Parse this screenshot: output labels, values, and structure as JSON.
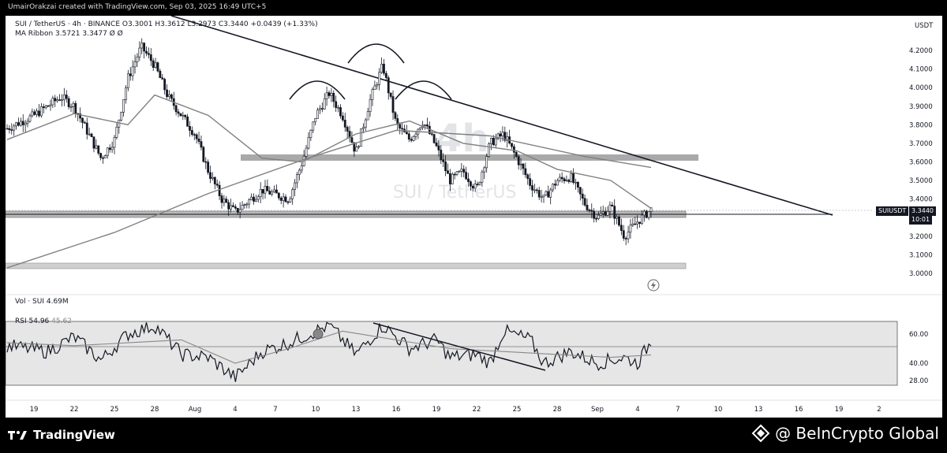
{
  "header": {
    "creator_line": "UmairOrakzai created with TradingView.com, Sep 03, 2025 16:49 UTC+5"
  },
  "legend": {
    "symbol_line": "SUI / TetherUS · 4h · BINANCE",
    "open": "O3.3001",
    "high": "H3.3612",
    "low": "L3.2973",
    "close": "C3.3440",
    "change": "+0.0439 (+1.33%)",
    "ma_ribbon": "MA Ribbon  3.5721  3.3477  Ø  Ø",
    "volume": "Vol · SUI  4.69M",
    "rsi_label": "RSI",
    "rsi_value": "54.96",
    "rsi_ma": "45.62"
  },
  "watermark": {
    "timeframe": "4h",
    "pair": "SUI / TetherUS"
  },
  "price_axis": {
    "currency": "USDT",
    "ticks": [
      "4.2000",
      "4.1000",
      "4.0000",
      "3.9000",
      "3.8000",
      "3.7000",
      "3.6000",
      "3.5000",
      "3.4000",
      "3.2000",
      "3.1000",
      "3.0000"
    ],
    "current_symbol": "SUIUSDT",
    "current_price": "3.3440",
    "countdown": "10:01"
  },
  "rsi_axis": {
    "ticks": [
      "60.00",
      "40.00",
      "28.00"
    ]
  },
  "time_axis": {
    "ticks": [
      "19",
      "22",
      "25",
      "28",
      "Aug",
      "4",
      "7",
      "10",
      "13",
      "16",
      "19",
      "22",
      "25",
      "28",
      "Sep",
      "4",
      "7",
      "10",
      "13",
      "16",
      "19",
      "2"
    ]
  },
  "footer": {
    "brand_left": "TradingView",
    "brand_right": "@ BeInCrypto Global"
  },
  "colors": {
    "up": "#089981",
    "down": "#f23645",
    "candle": "#131722",
    "zone": "#9e9e9e",
    "ma": "#808080"
  },
  "chart_data": {
    "type": "candlestick",
    "symbol": "SUIUSDT",
    "timeframe": "4h",
    "price_range": [
      2.95,
      4.3
    ],
    "rsi_range": [
      25,
      70
    ],
    "support_zones": [
      3.62,
      3.32,
      3.04
    ],
    "current_price": 3.344,
    "close_path": [
      {
        "x": "Jul 17",
        "y": 3.78
      },
      {
        "x": "Jul 19",
        "y": 3.85
      },
      {
        "x": "Jul 21",
        "y": 3.95
      },
      {
        "x": "Jul 22",
        "y": 3.9
      },
      {
        "x": "Jul 24",
        "y": 3.62
      },
      {
        "x": "Jul 25",
        "y": 3.72
      },
      {
        "x": "Jul 26",
        "y": 4.05
      },
      {
        "x": "Jul 27",
        "y": 4.22
      },
      {
        "x": "Jul 28",
        "y": 4.12
      },
      {
        "x": "Jul 29",
        "y": 3.95
      },
      {
        "x": "Jul 31",
        "y": 3.75
      },
      {
        "x": "Aug 1",
        "y": 3.55
      },
      {
        "x": "Aug 2",
        "y": 3.4
      },
      {
        "x": "Aug 3",
        "y": 3.33
      },
      {
        "x": "Aug 5",
        "y": 3.45
      },
      {
        "x": "Aug 7",
        "y": 3.4
      },
      {
        "x": "Aug 8",
        "y": 3.6
      },
      {
        "x": "Aug 9",
        "y": 3.85
      },
      {
        "x": "Aug 10",
        "y": 3.97
      },
      {
        "x": "Aug 11",
        "y": 3.85
      },
      {
        "x": "Aug 12",
        "y": 3.65
      },
      {
        "x": "Aug 13",
        "y": 3.92
      },
      {
        "x": "Aug 14",
        "y": 4.12
      },
      {
        "x": "Aug 15",
        "y": 3.8
      },
      {
        "x": "Aug 16",
        "y": 3.72
      },
      {
        "x": "Aug 17",
        "y": 3.82
      },
      {
        "x": "Aug 18",
        "y": 3.68
      },
      {
        "x": "Aug 19",
        "y": 3.5
      },
      {
        "x": "Aug 20",
        "y": 3.55
      },
      {
        "x": "Aug 21",
        "y": 3.45
      },
      {
        "x": "Aug 22",
        "y": 3.7
      },
      {
        "x": "Aug 23",
        "y": 3.75
      },
      {
        "x": "Aug 24",
        "y": 3.62
      },
      {
        "x": "Aug 25",
        "y": 3.48
      },
      {
        "x": "Aug 26",
        "y": 3.4
      },
      {
        "x": "Aug 27",
        "y": 3.5
      },
      {
        "x": "Aug 28",
        "y": 3.52
      },
      {
        "x": "Aug 29",
        "y": 3.38
      },
      {
        "x": "Aug 30",
        "y": 3.3
      },
      {
        "x": "Aug 31",
        "y": 3.36
      },
      {
        "x": "Sep 1",
        "y": 3.2
      },
      {
        "x": "Sep 2",
        "y": 3.28
      },
      {
        "x": "Sep 3",
        "y": 3.344
      }
    ],
    "ma_slow": [
      {
        "x": "Jul 17",
        "y": 3.03
      },
      {
        "x": "Jul 25",
        "y": 3.22
      },
      {
        "x": "Aug 1",
        "y": 3.43
      },
      {
        "x": "Aug 8",
        "y": 3.61
      },
      {
        "x": "Aug 15",
        "y": 3.77
      },
      {
        "x": "Aug 22",
        "y": 3.74
      },
      {
        "x": "Aug 29",
        "y": 3.63
      },
      {
        "x": "Sep 3",
        "y": 3.57
      }
    ],
    "ma_fast": [
      {
        "x": "Jul 17",
        "y": 3.72
      },
      {
        "x": "Jul 22",
        "y": 3.86
      },
      {
        "x": "Jul 26",
        "y": 3.8
      },
      {
        "x": "Jul 28",
        "y": 3.96
      },
      {
        "x": "Aug 1",
        "y": 3.85
      },
      {
        "x": "Aug 5",
        "y": 3.62
      },
      {
        "x": "Aug 8",
        "y": 3.6
      },
      {
        "x": "Aug 12",
        "y": 3.75
      },
      {
        "x": "Aug 16",
        "y": 3.82
      },
      {
        "x": "Aug 20",
        "y": 3.7
      },
      {
        "x": "Aug 24",
        "y": 3.66
      },
      {
        "x": "Aug 27",
        "y": 3.56
      },
      {
        "x": "Aug 31",
        "y": 3.5
      },
      {
        "x": "Sep 3",
        "y": 3.35
      }
    ],
    "rsi": [
      {
        "x": "Jul 17",
        "y": 52
      },
      {
        "x": "Jul 20",
        "y": 48
      },
      {
        "x": "Jul 22",
        "y": 58
      },
      {
        "x": "Jul 24",
        "y": 42
      },
      {
        "x": "Jul 26",
        "y": 60
      },
      {
        "x": "Jul 28",
        "y": 66
      },
      {
        "x": "Jul 30",
        "y": 46
      },
      {
        "x": "Aug 1",
        "y": 44
      },
      {
        "x": "Aug 3",
        "y": 30
      },
      {
        "x": "Aug 5",
        "y": 48
      },
      {
        "x": "Aug 7",
        "y": 54
      },
      {
        "x": "Aug 9",
        "y": 62
      },
      {
        "x": "Aug 10",
        "y": 66
      },
      {
        "x": "Aug 12",
        "y": 46
      },
      {
        "x": "Aug 14",
        "y": 66
      },
      {
        "x": "Aug 16",
        "y": 50
      },
      {
        "x": "Aug 18",
        "y": 56
      },
      {
        "x": "Aug 19",
        "y": 44
      },
      {
        "x": "Aug 21",
        "y": 46
      },
      {
        "x": "Aug 22",
        "y": 40
      },
      {
        "x": "Aug 23",
        "y": 62
      },
      {
        "x": "Aug 25",
        "y": 56
      },
      {
        "x": "Aug 26",
        "y": 40
      },
      {
        "x": "Aug 28",
        "y": 48
      },
      {
        "x": "Aug 30",
        "y": 40
      },
      {
        "x": "Sep 1",
        "y": 44
      },
      {
        "x": "Sep 2",
        "y": 40
      },
      {
        "x": "Sep 3",
        "y": 55
      }
    ],
    "rsi_ma": [
      {
        "x": "Jul 17",
        "y": 54
      },
      {
        "x": "Jul 22",
        "y": 52
      },
      {
        "x": "Jul 26",
        "y": 54
      },
      {
        "x": "Jul 30",
        "y": 56
      },
      {
        "x": "Aug 3",
        "y": 40
      },
      {
        "x": "Aug 7",
        "y": 50
      },
      {
        "x": "Aug 11",
        "y": 62
      },
      {
        "x": "Aug 15",
        "y": 56
      },
      {
        "x": "Aug 19",
        "y": 50
      },
      {
        "x": "Aug 23",
        "y": 48
      },
      {
        "x": "Aug 27",
        "y": 46
      },
      {
        "x": "Aug 31",
        "y": 44
      },
      {
        "x": "Sep 3",
        "y": 45.6
      }
    ]
  }
}
